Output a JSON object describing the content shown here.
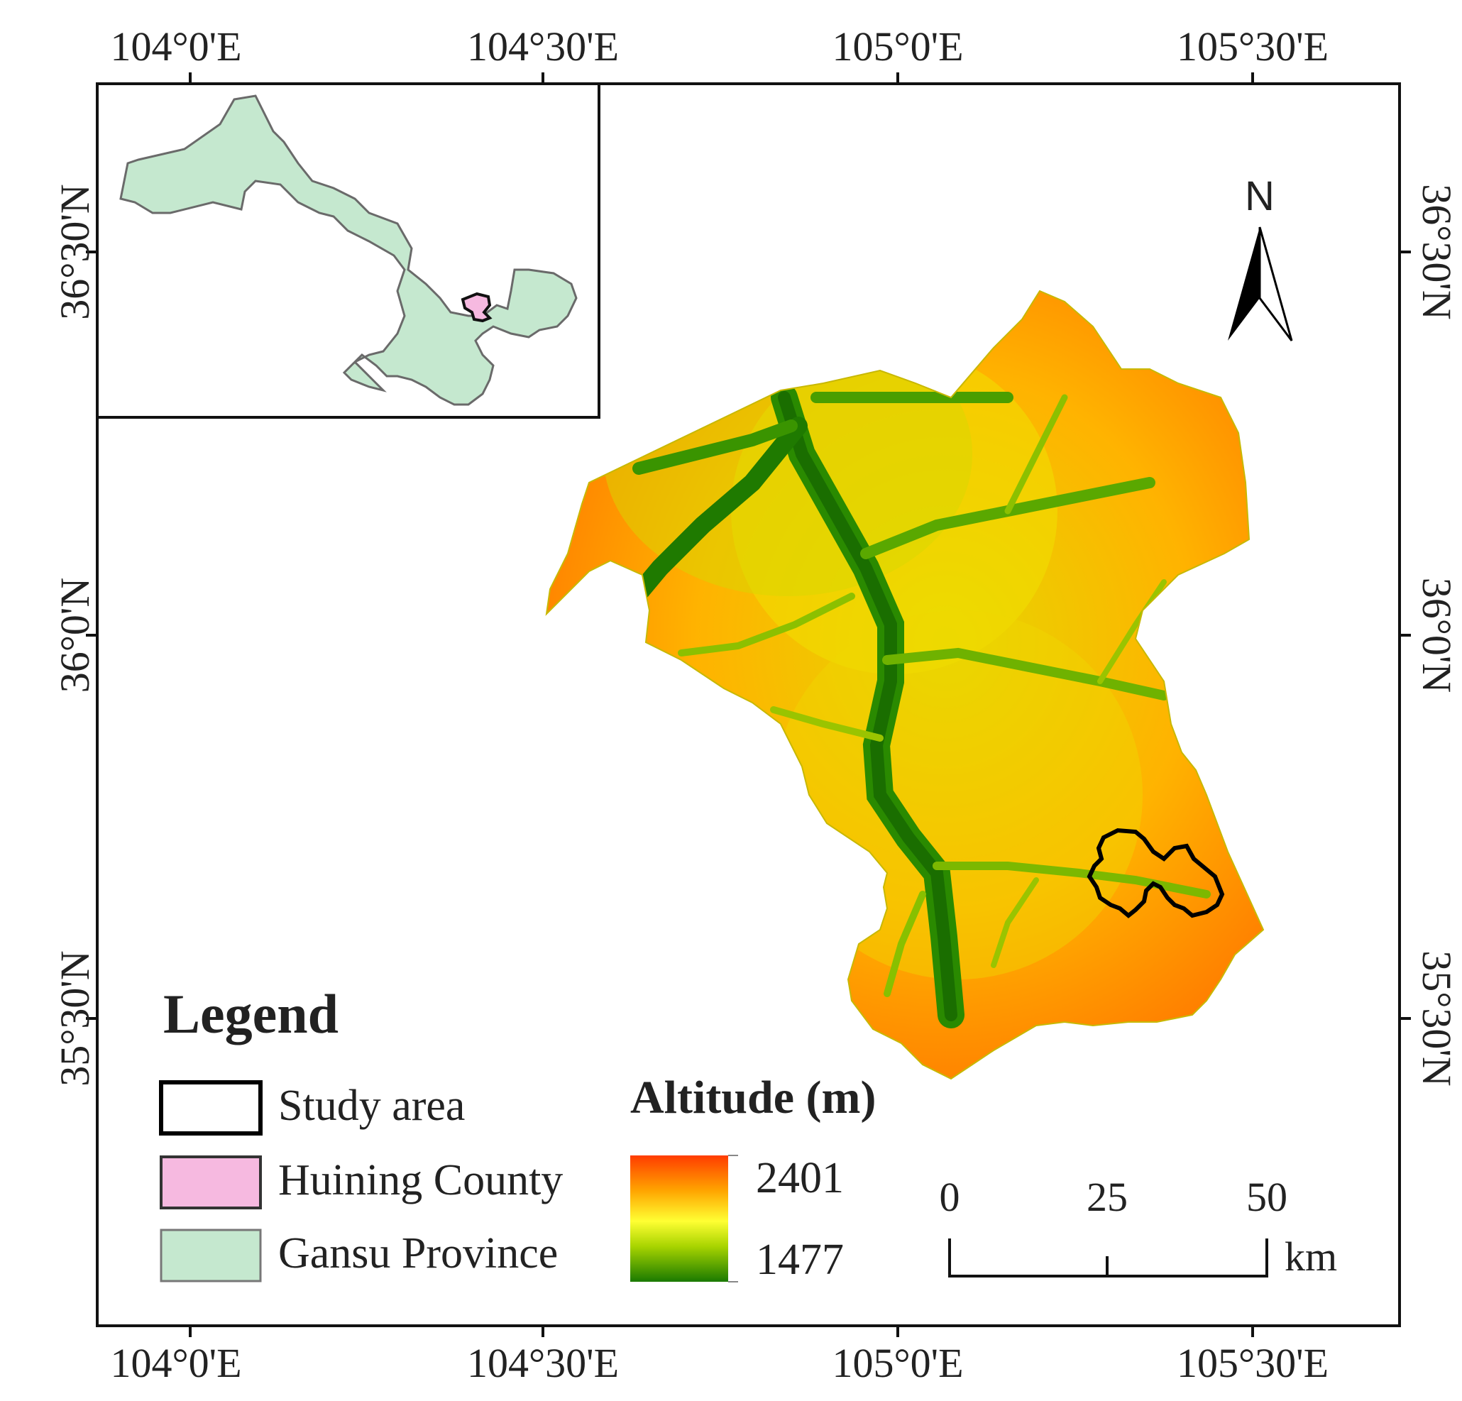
{
  "axes": {
    "top_lon": [
      "104°0'E",
      "104°30'E",
      "105°0'E",
      "105°30'E"
    ],
    "bottom_lon": [
      "104°0'E",
      "104°30'E",
      "105°0'E",
      "105°30'E"
    ],
    "left_lat": [
      "36°30'N",
      "36°0'N",
      "35°30'N"
    ],
    "right_lat": [
      "36°30'N",
      "36°0'N",
      "35°30'N"
    ]
  },
  "north_arrow": {
    "label": "N"
  },
  "legend": {
    "title": "Legend",
    "items": [
      {
        "label": "Study area",
        "fill": "#ffffff",
        "stroke": "#000000"
      },
      {
        "label": "Huining County",
        "fill": "#f6b9e0",
        "stroke": "#333333"
      },
      {
        "label": "Gansu Province",
        "fill": "#c5e8cf",
        "stroke": "#666666"
      }
    ]
  },
  "altitude": {
    "title": "Altitude (m)",
    "max": "2401",
    "min": "1477",
    "colors": [
      "#ff3c00",
      "#ffa500",
      "#ffff33",
      "#a8d400",
      "#1a7a00"
    ]
  },
  "scale_bar": {
    "labels": [
      "0",
      "25",
      "50"
    ],
    "unit": "km"
  },
  "colors": {
    "province": "#c5e8cf",
    "county": "#f6b9e0",
    "frame": "#111111"
  }
}
